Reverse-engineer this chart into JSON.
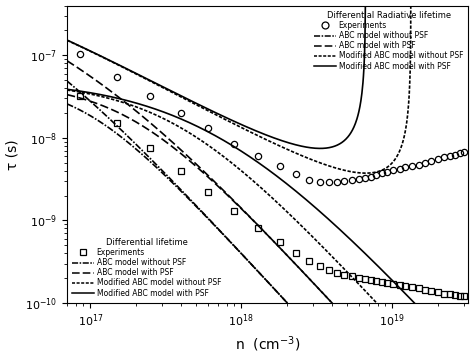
{
  "xmin": 7e+16,
  "xmax": 3.2e+19,
  "ymin": 1e-10,
  "ymax": 4e-07,
  "xlabel": "n  (cm$^{-3}$)",
  "ylabel": "τ (s)",
  "legend1_title": "Differential Radiative lifetime",
  "legend2_title": "Differential lifetime",
  "background_color": "#ffffff",
  "n_exp_rad": [
    8.5e+16,
    1.5e+17,
    2.5e+17,
    4e+17,
    6e+17,
    9e+17,
    1.3e+18,
    1.8e+18,
    2.3e+18,
    2.8e+18,
    3.3e+18,
    3.8e+18,
    4.3e+18,
    4.8e+18,
    5.4e+18,
    6e+18,
    6.6e+18,
    7.2e+18,
    7.8e+18,
    8.5e+18,
    9.3e+18,
    1.02e+19,
    1.12e+19,
    1.22e+19,
    1.35e+19,
    1.5e+19,
    1.65e+19,
    1.8e+19,
    2e+19,
    2.2e+19,
    2.4e+19,
    2.6e+19,
    2.8e+19,
    3e+19
  ],
  "tau_exp_rad": [
    1.05e-07,
    5.5e-08,
    3.2e-08,
    2e-08,
    1.3e-08,
    8.5e-09,
    6e-09,
    4.5e-09,
    3.6e-09,
    3.1e-09,
    2.9e-09,
    2.9e-09,
    2.9e-09,
    3e-09,
    3.1e-09,
    3.2e-09,
    3.3e-09,
    3.4e-09,
    3.5e-09,
    3.7e-09,
    3.9e-09,
    4.1e-09,
    4.2e-09,
    4.4e-09,
    4.5e-09,
    4.7e-09,
    5e-09,
    5.2e-09,
    5.5e-09,
    5.8e-09,
    6e-09,
    6.2e-09,
    6.5e-09,
    6.8e-09
  ],
  "n_exp_diff": [
    8.5e+16,
    1.5e+17,
    2.5e+17,
    4e+17,
    6e+17,
    9e+17,
    1.3e+18,
    1.8e+18,
    2.3e+18,
    2.8e+18,
    3.3e+18,
    3.8e+18,
    4.3e+18,
    4.8e+18,
    5.4e+18,
    6e+18,
    6.6e+18,
    7.2e+18,
    7.8e+18,
    8.5e+18,
    9.3e+18,
    1.02e+19,
    1.12e+19,
    1.22e+19,
    1.35e+19,
    1.5e+19,
    1.65e+19,
    1.8e+19,
    2e+19,
    2.2e+19,
    2.4e+19,
    2.6e+19,
    2.8e+19,
    3e+19
  ],
  "tau_exp_diff": [
    3.2e-08,
    1.5e-08,
    7.5e-09,
    4e-09,
    2.2e-09,
    1.3e-09,
    8e-10,
    5.5e-10,
    4e-10,
    3.2e-10,
    2.8e-10,
    2.5e-10,
    2.3e-10,
    2.2e-10,
    2.1e-10,
    2e-10,
    1.95e-10,
    1.9e-10,
    1.85e-10,
    1.8e-10,
    1.75e-10,
    1.7e-10,
    1.65e-10,
    1.6e-10,
    1.55e-10,
    1.5e-10,
    1.45e-10,
    1.4e-10,
    1.35e-10,
    1.3e-10,
    1.28e-10,
    1.25e-10,
    1.22e-10,
    1.2e-10
  ]
}
